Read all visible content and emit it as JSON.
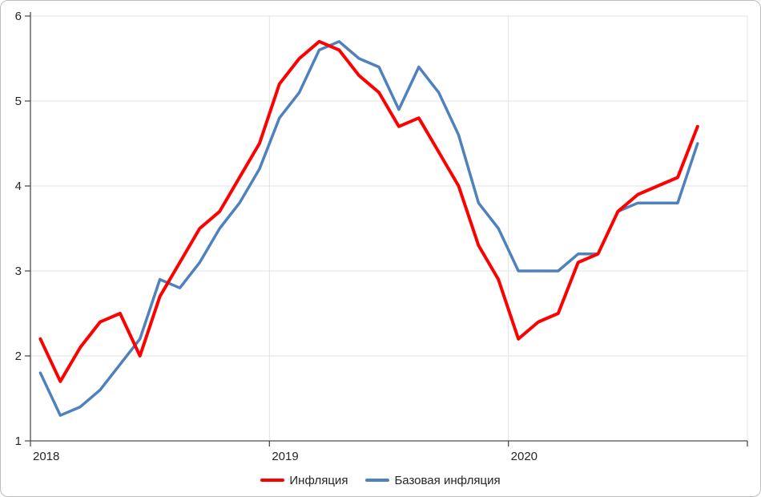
{
  "chart_data": {
    "type": "line",
    "title": "",
    "x_tick_labels": [
      "2018",
      "2019",
      "2020"
    ],
    "y_ticks": [
      1,
      2,
      3,
      4,
      5,
      6
    ],
    "ylim": [
      1,
      6
    ],
    "grid": "light horizontal gridlines at each integer, light vertical gridlines at year boundaries",
    "legend_position": "bottom-center",
    "x_frequency": "monthly",
    "months": [
      "2018-01",
      "2018-02",
      "2018-03",
      "2018-04",
      "2018-05",
      "2018-06",
      "2018-07",
      "2018-08",
      "2018-09",
      "2018-10",
      "2018-11",
      "2018-12",
      "2019-01",
      "2019-02",
      "2019-03",
      "2019-04",
      "2019-05",
      "2019-06",
      "2019-07",
      "2019-08",
      "2019-09",
      "2019-10",
      "2019-11",
      "2019-12",
      "2020-01",
      "2020-02",
      "2020-03",
      "2020-04",
      "2020-05",
      "2020-06",
      "2020-07",
      "2020-08",
      "2020-09",
      "2020-10"
    ],
    "series": [
      {
        "name": "Инфляция",
        "color": "#FF0000",
        "width": 4,
        "values": [
          2.2,
          1.7,
          2.1,
          2.4,
          2.5,
          2.0,
          2.7,
          3.1,
          3.5,
          3.7,
          4.1,
          4.5,
          5.2,
          5.5,
          5.7,
          5.6,
          5.3,
          5.1,
          4.7,
          4.8,
          4.4,
          4.0,
          3.3,
          2.9,
          2.2,
          2.4,
          2.5,
          3.1,
          3.2,
          3.7,
          3.9,
          4.0,
          4.1,
          4.7
        ]
      },
      {
        "name": "Базовая инфляция",
        "color": "#4F81BD",
        "width": 3.5,
        "values": [
          1.8,
          1.3,
          1.4,
          1.6,
          1.9,
          2.2,
          2.9,
          2.8,
          3.1,
          3.5,
          3.8,
          4.2,
          4.8,
          5.1,
          5.6,
          5.7,
          5.5,
          5.4,
          4.9,
          5.4,
          5.1,
          4.6,
          3.8,
          3.5,
          3.0,
          3.0,
          3.0,
          3.2,
          3.2,
          3.7,
          3.8,
          3.8,
          3.8,
          4.5
        ]
      }
    ],
    "colors": {
      "gridline": "#E3E3E3",
      "axis": "#4d4d4d",
      "tick_label": "#262626"
    }
  }
}
